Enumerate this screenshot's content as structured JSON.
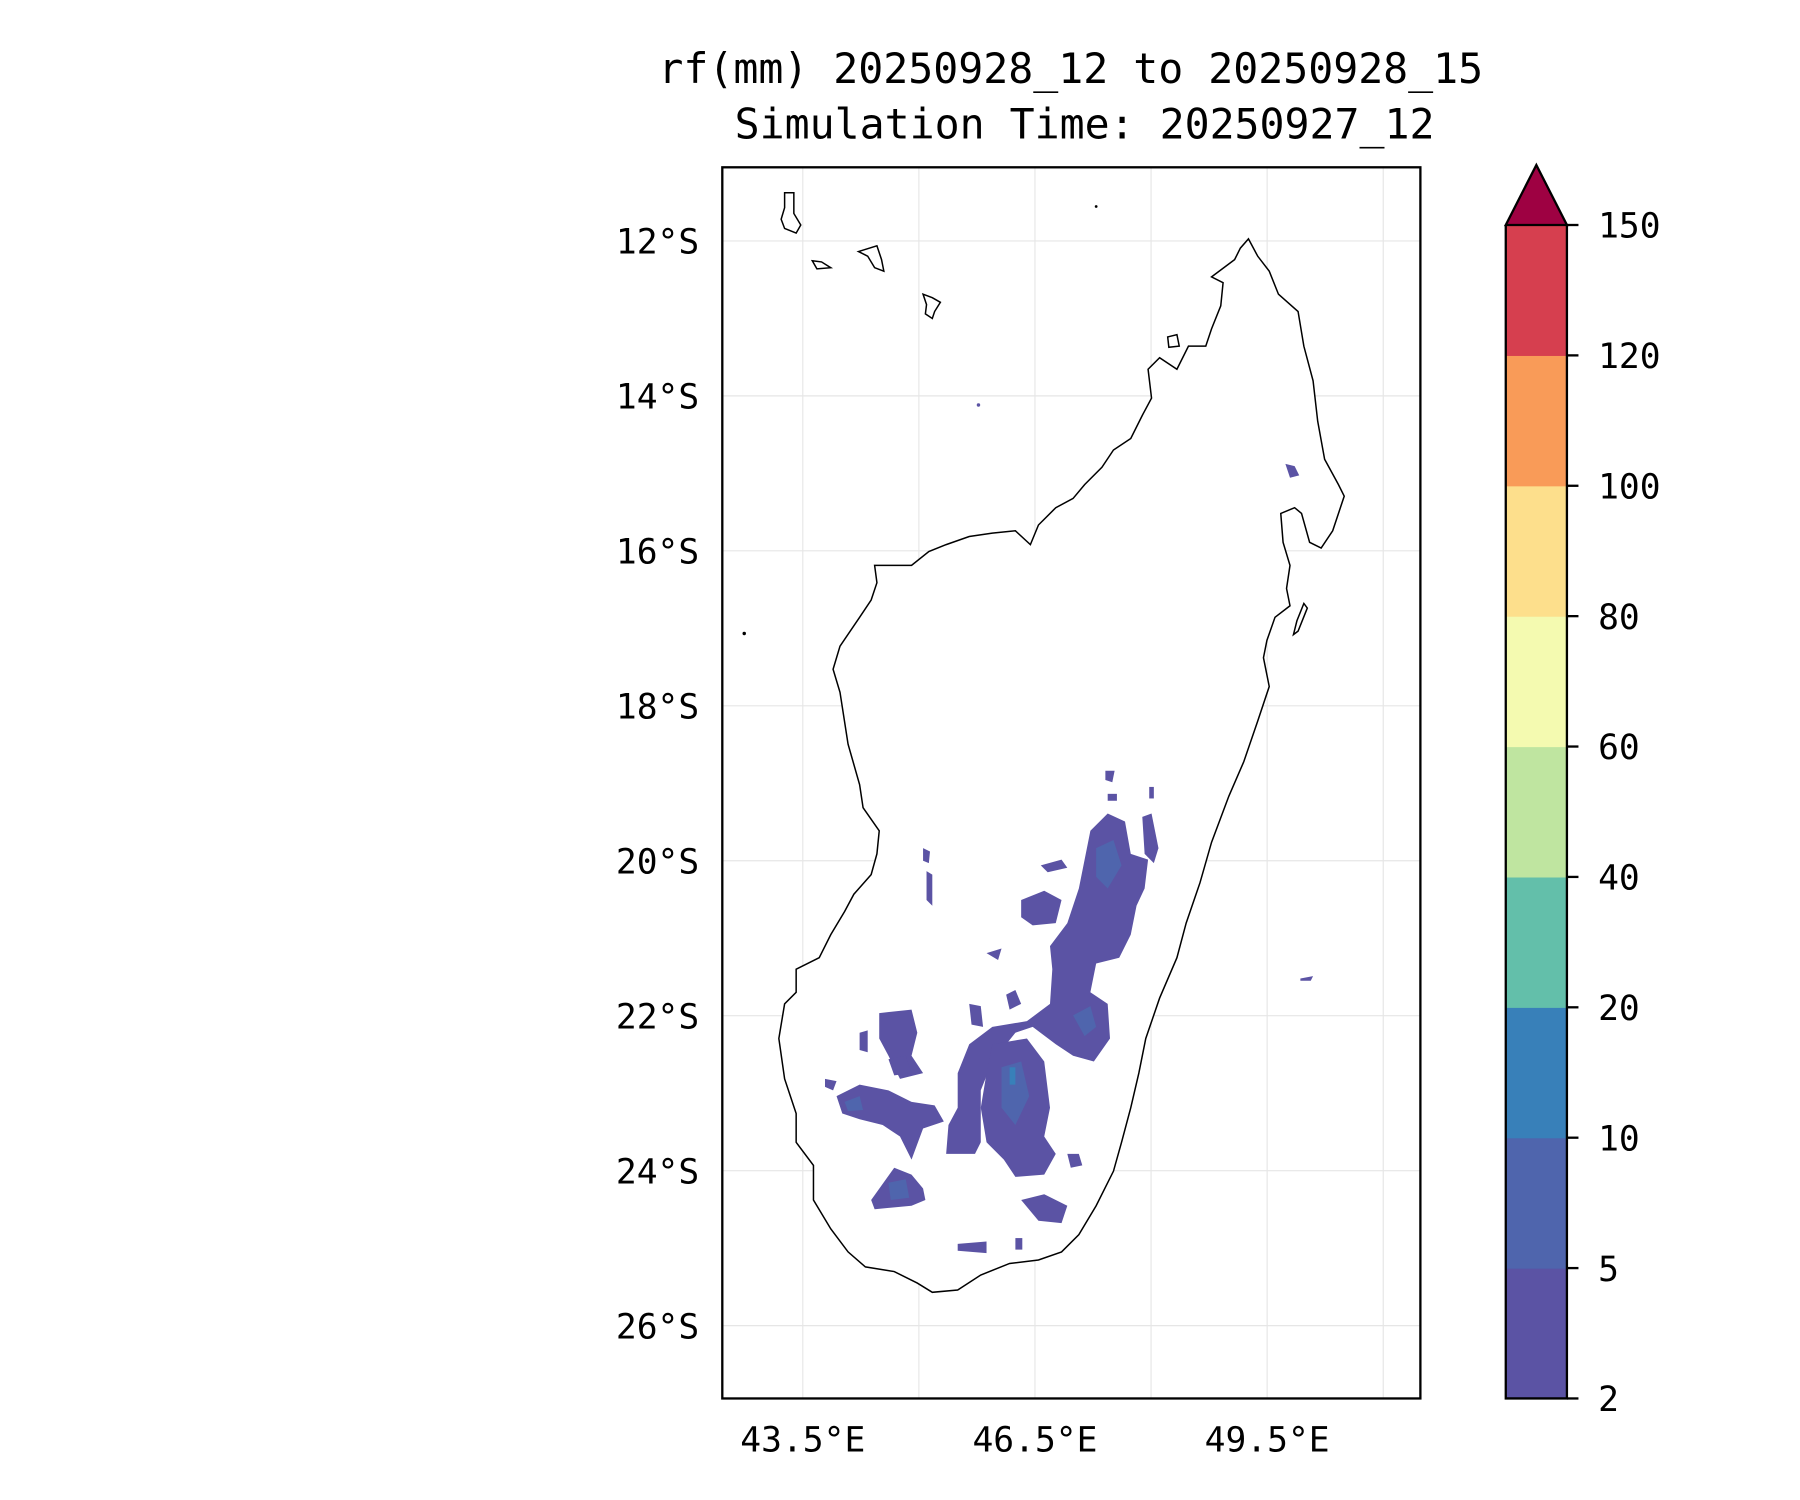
{
  "chart_data": {
    "type": "heatmap",
    "title": "rf(mm) 20250928_12 to 20250928_15",
    "subtitle": "Simulation Time: 20250927_12",
    "xlabel": "",
    "ylabel": "",
    "xlim": [
      42.46,
      51.48
    ],
    "ylim": [
      -26.94,
      -11.05
    ],
    "x_ticks": [
      {
        "value": 43.5,
        "label": "43.5°E"
      },
      {
        "value": 46.5,
        "label": "46.5°E"
      },
      {
        "value": 49.5,
        "label": "49.5°E"
      }
    ],
    "x_gridlines": [
      43.5,
      45,
      46.5,
      48,
      49.5,
      51
    ],
    "y_ticks": [
      {
        "value": -12,
        "label": "12°S"
      },
      {
        "value": -14,
        "label": "14°S"
      },
      {
        "value": -16,
        "label": "16°S"
      },
      {
        "value": -18,
        "label": "18°S"
      },
      {
        "value": -20,
        "label": "20°S"
      },
      {
        "value": -22,
        "label": "22°S"
      },
      {
        "value": -24,
        "label": "24°S"
      },
      {
        "value": -26,
        "label": "26°S"
      }
    ],
    "grid": true,
    "colorbar": {
      "levels": [
        "2",
        "5",
        "10",
        "20",
        "40",
        "60",
        "80",
        "100",
        "120",
        "150"
      ],
      "colors": [
        "#5b53a4",
        "#4f65ad",
        "#3880b9",
        "#63bfaa",
        "#bfe5a0",
        "#f4fab0",
        "#fddf8c",
        "#f99b58",
        "#d63f4f"
      ],
      "extend_max_color": "#9e0142",
      "placement": "right"
    },
    "observed_rainfall_max_band": "5-10 mm (mostly 2-5 mm) over south-central Madagascar"
  }
}
